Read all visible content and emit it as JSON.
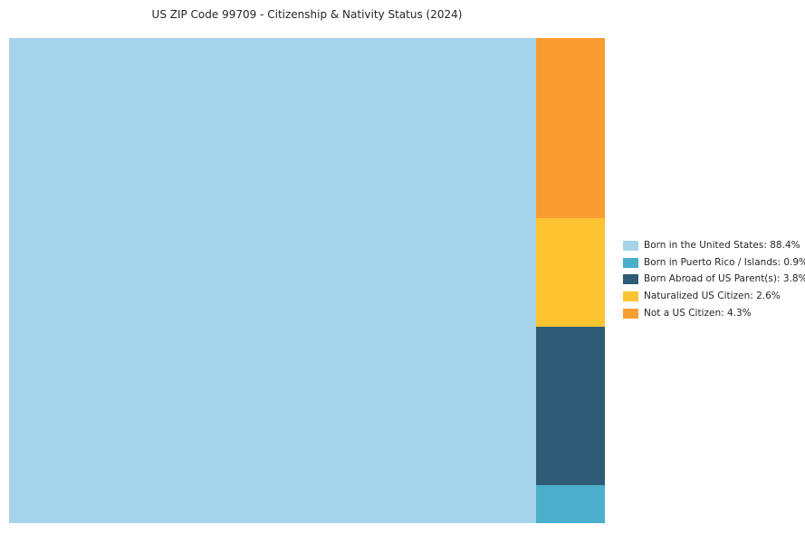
{
  "page": {
    "background": "#ffffff"
  },
  "chart_data": {
    "type": "treemap",
    "title": "US ZIP Code 99709 - Citizenship & Nativity Status (2024)",
    "categories": [
      "Born in the United States",
      "Born in Puerto Rico / Islands",
      "Born Abroad of US Parent(s)",
      "Naturalized US Citizen",
      "Not a US Citizen"
    ],
    "values": [
      88.4,
      0.9,
      3.8,
      2.6,
      4.3
    ],
    "colors": [
      "#A6D4EA",
      "#4BAFCB",
      "#2F5B76",
      "#FDC431",
      "#F99D33"
    ],
    "legend": {
      "position": "right",
      "entries": [
        "Born in the United States: 88.4%",
        "Born in Puerto Rico / Islands: 0.9%",
        "Born Abroad of US Parent(s): 3.8%",
        "Naturalized US Citizen: 2.6%",
        "Not a US Citizen: 4.3%"
      ]
    },
    "layout": {
      "main_tile_index": 0,
      "right_column_top_to_bottom": [
        4,
        3,
        2,
        1
      ],
      "gridlines": false,
      "axes": false
    }
  }
}
